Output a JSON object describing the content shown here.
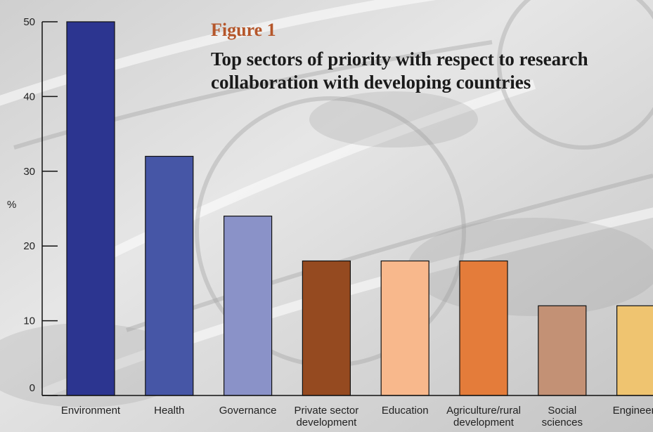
{
  "figure": {
    "label": "Figure 1",
    "title": "Top sectors of priority with respect to research collaboration with developing countries"
  },
  "chart_data": {
    "type": "bar",
    "title": "Top sectors of priority with respect to research collaboration with developing countries",
    "xlabel": "",
    "ylabel": "%",
    "ylim": [
      0,
      50
    ],
    "yticks": [
      0,
      10,
      20,
      30,
      40,
      50
    ],
    "grid": false,
    "categories": [
      "Environment",
      "Health",
      "Governance",
      "Private sector development",
      "Education",
      "Agriculture/rural development",
      "Social sciences",
      "Engineering"
    ],
    "category_lines": [
      [
        "Environment"
      ],
      [
        "Health"
      ],
      [
        "Governance"
      ],
      [
        "Private sector",
        "development"
      ],
      [
        "Education"
      ],
      [
        "Agriculture/rural",
        "development"
      ],
      [
        "Social",
        "sciences"
      ],
      [
        "Engineering"
      ]
    ],
    "values": [
      50,
      32,
      24,
      18,
      18,
      18,
      12,
      12
    ],
    "colors": [
      "#2c3590",
      "#4656a6",
      "#8a92c8",
      "#954a20",
      "#f8b88c",
      "#e47c3a",
      "#c39175",
      "#efc470"
    ]
  }
}
